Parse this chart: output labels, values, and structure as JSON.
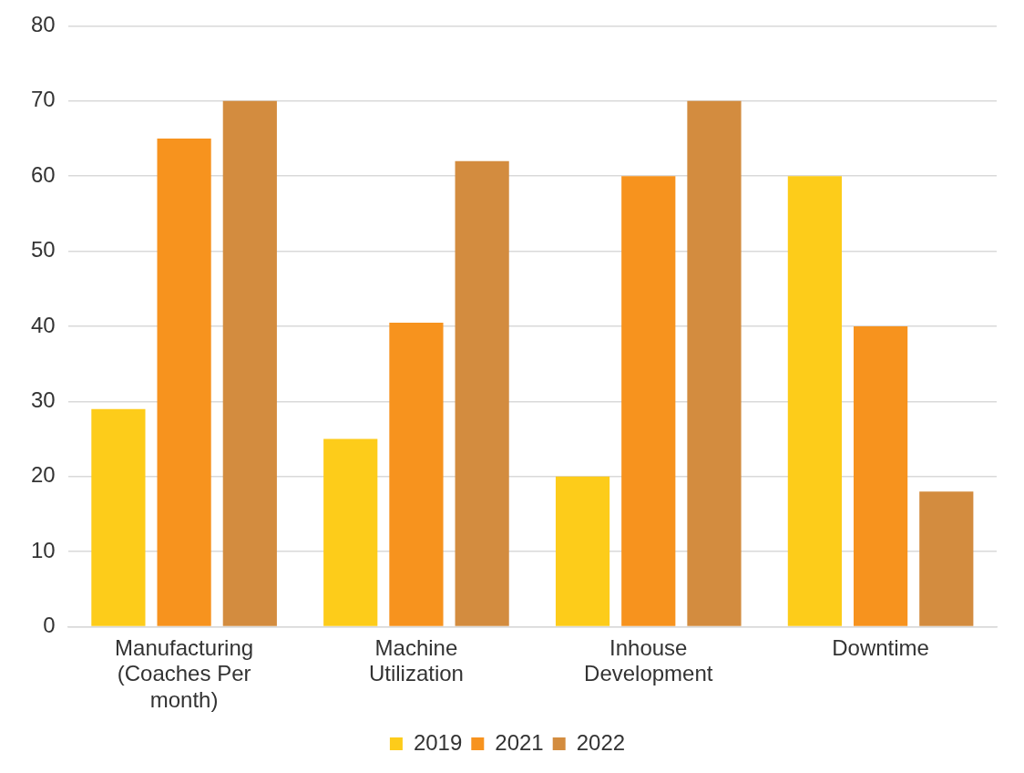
{
  "chart_data": {
    "type": "bar",
    "categories": [
      "Manufacturing (Coaches Per month)",
      "Machine Utilization",
      "Inhouse Development",
      "Downtime"
    ],
    "series": [
      {
        "name": "2019",
        "color": "#fdcc1a",
        "values": [
          29,
          25,
          20,
          60
        ]
      },
      {
        "name": "2021",
        "color": "#f7931e",
        "values": [
          65,
          40.5,
          60,
          40
        ]
      },
      {
        "name": "2022",
        "color": "#d38c3f",
        "values": [
          70,
          62,
          70,
          18
        ]
      }
    ],
    "ylim": [
      0,
      80
    ],
    "yticks": [
      0,
      10,
      20,
      30,
      40,
      50,
      60,
      70,
      80
    ],
    "grid": "y",
    "legend": "bottom"
  }
}
